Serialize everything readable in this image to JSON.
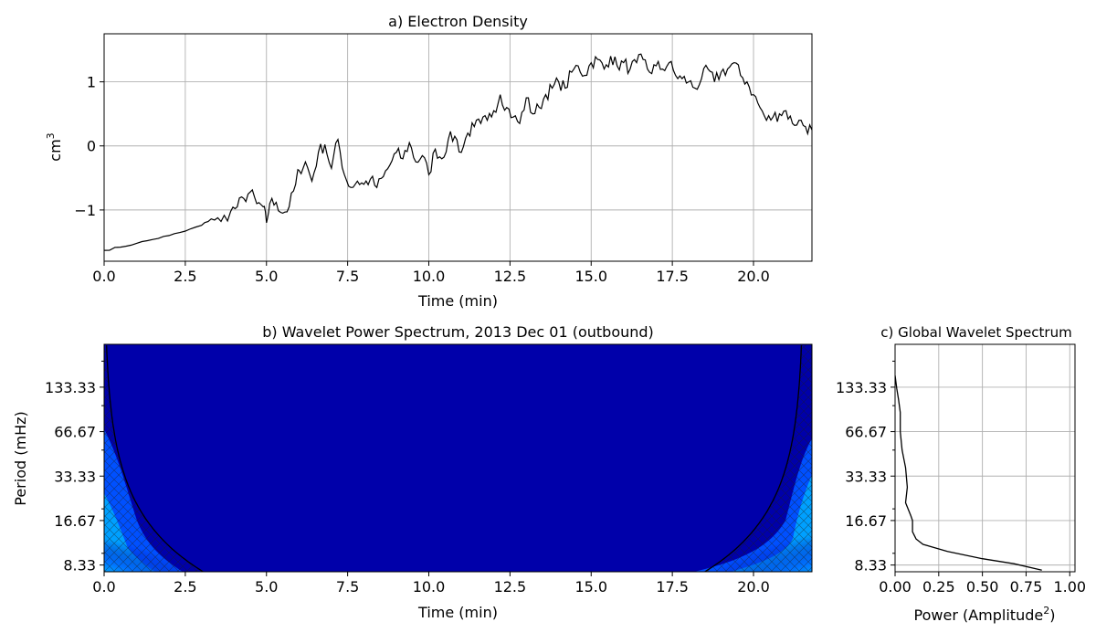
{
  "chart_data": [
    {
      "id": "a",
      "type": "line",
      "title": "a) Electron Density",
      "xlabel": "Time (min)",
      "ylabel": "cm",
      "ylabel_superscript": "3",
      "xlim": [
        0,
        21.8
      ],
      "ylim": [
        -1.8,
        1.75
      ],
      "grid": true,
      "xticks": [
        0,
        2.5,
        5,
        7.5,
        10,
        12.5,
        15,
        17.5,
        20
      ],
      "xtick_labels": [
        "0.0",
        "2.5",
        "5.0",
        "7.5",
        "10.0",
        "12.5",
        "15.0",
        "17.5",
        "20.0"
      ],
      "yticks": [
        -1,
        0,
        1
      ],
      "ytick_labels": [
        "−1",
        "0",
        "1"
      ],
      "series": [
        {
          "color": "#000000",
          "x": [
            0,
            0.5,
            1,
            1.5,
            2,
            2.5,
            3,
            3.3,
            3.6,
            3.9,
            4.1,
            4.3,
            4.5,
            4.7,
            4.9,
            5.0,
            5.1,
            5.3,
            5.5,
            5.7,
            5.9,
            6.0,
            6.2,
            6.4,
            6.6,
            6.8,
            7.0,
            7.2,
            7.4,
            7.6,
            7.8,
            8.0,
            8.2,
            8.4,
            8.6,
            8.8,
            9.0,
            9.2,
            9.4,
            9.6,
            9.8,
            10.0,
            10.2,
            10.4,
            10.6,
            10.8,
            11.0,
            11.2,
            11.4,
            11.6,
            11.8,
            12.0,
            12.2,
            12.4,
            12.6,
            12.8,
            13.0,
            13.2,
            13.4,
            13.6,
            13.8,
            14.0,
            14.2,
            14.4,
            14.6,
            14.8,
            15.0,
            15.2,
            15.4,
            15.6,
            15.8,
            16.0,
            16.2,
            16.4,
            16.6,
            16.8,
            17.0,
            17.2,
            17.4,
            17.6,
            17.8,
            18.0,
            18.2,
            18.4,
            18.6,
            18.8,
            19.0,
            19.2,
            19.4,
            19.6,
            19.8,
            20.0,
            20.2,
            20.4,
            20.6,
            20.8,
            21.0,
            21.2,
            21.4,
            21.6,
            21.8
          ],
          "y": [
            -1.63,
            -1.58,
            -1.52,
            -1.46,
            -1.4,
            -1.33,
            -1.24,
            -1.14,
            -1.18,
            -1.02,
            -0.95,
            -0.82,
            -0.72,
            -0.9,
            -0.95,
            -1.2,
            -0.9,
            -0.88,
            -1.05,
            -0.95,
            -0.6,
            -0.38,
            -0.25,
            -0.55,
            -0.1,
            0.02,
            -0.35,
            0.1,
            -0.45,
            -0.65,
            -0.55,
            -0.6,
            -0.52,
            -0.65,
            -0.48,
            -0.3,
            -0.1,
            -0.2,
            0.05,
            -0.25,
            -0.15,
            -0.45,
            -0.05,
            -0.2,
            0.1,
            0.15,
            -0.1,
            0.2,
            0.3,
            0.35,
            0.4,
            0.55,
            0.8,
            0.6,
            0.45,
            0.35,
            0.75,
            0.5,
            0.6,
            0.8,
            0.9,
            1.0,
            0.9,
            1.15,
            1.25,
            1.1,
            1.3,
            1.35,
            1.2,
            1.4,
            1.25,
            1.3,
            1.2,
            1.3,
            1.35,
            1.15,
            1.25,
            1.2,
            1.3,
            1.1,
            1.05,
            1.0,
            0.9,
            1.05,
            1.2,
            1.0,
            1.15,
            1.2,
            1.3,
            1.1,
            1.0,
            0.8,
            0.6,
            0.4,
            0.45,
            0.5,
            0.55,
            0.35,
            0.4,
            0.3,
            0.25
          ]
        }
      ]
    },
    {
      "id": "b",
      "type": "heatmap",
      "title": "b) Wavelet Power Spectrum, 2013 Dec 01 (outbound)",
      "xlabel": "Time (min)",
      "ylabel": "Period (mHz)",
      "xlim": [
        0,
        21.8
      ],
      "ylim": [
        7.5,
        260
      ],
      "yscale": "log",
      "grid": false,
      "xticks": [
        0,
        2.5,
        5,
        7.5,
        10,
        12.5,
        15,
        17.5,
        20
      ],
      "xtick_labels": [
        "0.0",
        "2.5",
        "5.0",
        "7.5",
        "10.0",
        "12.5",
        "15.0",
        "17.5",
        "20.0"
      ],
      "yticks": [
        8.33,
        16.67,
        33.33,
        66.67,
        133.33
      ],
      "ytick_labels": [
        "8.33",
        "16.67",
        "33.33",
        "66.67",
        "133.33"
      ],
      "colormap": "jet",
      "background_color": "#0000aa",
      "cone_of_influence": true
    },
    {
      "id": "c",
      "type": "line",
      "title": "c) Global Wavelet Spectrum",
      "xlabel": "Power (Amplitude",
      "xlabel_superscript": "2",
      "xlabel_suffix": ")",
      "xlim": [
        0,
        1.03
      ],
      "ylim": [
        7.5,
        260
      ],
      "yscale": "log",
      "grid": true,
      "xticks": [
        0,
        0.25,
        0.5,
        0.75,
        1.0
      ],
      "xtick_labels": [
        "0.00",
        "0.25",
        "0.50",
        "0.75",
        "1.00"
      ],
      "yticks": [
        8.33,
        16.67,
        33.33,
        66.67,
        133.33
      ],
      "ytick_labels": [
        "8.33",
        "16.67",
        "33.33",
        "66.67",
        "133.33"
      ],
      "series": [
        {
          "color": "#000000",
          "power": [
            0.0,
            0.01,
            0.02,
            0.03,
            0.03,
            0.04,
            0.06,
            0.07,
            0.06,
            0.09,
            0.1,
            0.1,
            0.12,
            0.16,
            0.3,
            0.5,
            0.68,
            0.84
          ],
          "period": [
            160,
            130,
            110,
            90,
            66.67,
            50,
            38,
            28,
            22,
            18,
            16.67,
            14,
            12.5,
            11.5,
            10.3,
            9.2,
            8.5,
            7.7
          ]
        }
      ]
    }
  ]
}
